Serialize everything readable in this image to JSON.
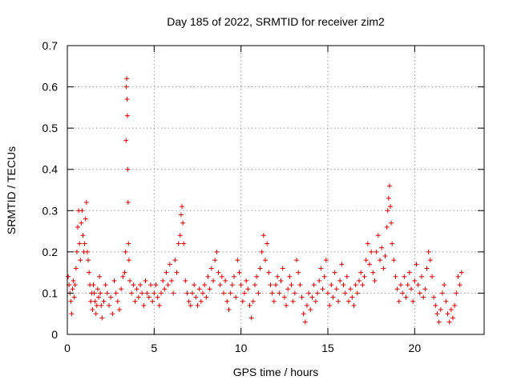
{
  "chart_data": {
    "type": "scatter",
    "title": "Day 185 of 2022, SRMTID for receiver zim2",
    "xlabel": "GPS time / hours",
    "ylabel": "SRMTID / TECUs",
    "xlim": [
      0,
      24
    ],
    "ylim": [
      0,
      0.7
    ],
    "xticks": [
      0,
      5,
      10,
      15,
      20
    ],
    "yticks": [
      0,
      0.1,
      0.2,
      0.3,
      0.4,
      0.5,
      0.6,
      0.7
    ],
    "xtick_labels": [
      "0",
      "5",
      "10",
      "15",
      "20"
    ],
    "ytick_labels": [
      "0",
      "0.1",
      "0.2",
      "0.3",
      "0.4",
      "0.5",
      "0.6",
      "0.7"
    ],
    "grid": true,
    "marker": "plus",
    "marker_color": "#e00000",
    "series": [
      {
        "name": "SRMTID",
        "points": [
          [
            0.05,
            0.14
          ],
          [
            0.1,
            0.12
          ],
          [
            0.15,
            0.1
          ],
          [
            0.2,
            0.08
          ],
          [
            0.25,
            0.05
          ],
          [
            0.3,
            0.11
          ],
          [
            0.35,
            0.13
          ],
          [
            0.4,
            0.09
          ],
          [
            0.45,
            0.12
          ],
          [
            0.5,
            0.16
          ],
          [
            0.55,
            0.2
          ],
          [
            0.6,
            0.26
          ],
          [
            0.65,
            0.3
          ],
          [
            0.7,
            0.22
          ],
          [
            0.75,
            0.18
          ],
          [
            0.8,
            0.27
          ],
          [
            0.85,
            0.3
          ],
          [
            0.9,
            0.24
          ],
          [
            0.95,
            0.2
          ],
          [
            1.0,
            0.22
          ],
          [
            1.05,
            0.28
          ],
          [
            1.1,
            0.32
          ],
          [
            1.15,
            0.2
          ],
          [
            1.2,
            0.18
          ],
          [
            1.25,
            0.15
          ],
          [
            1.3,
            0.12
          ],
          [
            1.35,
            0.08
          ],
          [
            1.4,
            0.1
          ],
          [
            1.45,
            0.06
          ],
          [
            1.5,
            0.12
          ],
          [
            1.55,
            0.1
          ],
          [
            1.6,
            0.08
          ],
          [
            1.65,
            0.05
          ],
          [
            1.7,
            0.07
          ],
          [
            1.75,
            0.11
          ],
          [
            1.8,
            0.09
          ],
          [
            1.85,
            0.14
          ],
          [
            1.9,
            0.1
          ],
          [
            1.95,
            0.07
          ],
          [
            2.0,
            0.04
          ],
          [
            2.1,
            0.08
          ],
          [
            2.2,
            0.12
          ],
          [
            2.3,
            0.1
          ],
          [
            2.4,
            0.07
          ],
          [
            2.5,
            0.09
          ],
          [
            2.6,
            0.05
          ],
          [
            2.7,
            0.13
          ],
          [
            2.8,
            0.1
          ],
          [
            2.9,
            0.08
          ],
          [
            3.0,
            0.06
          ],
          [
            3.1,
            0.11
          ],
          [
            3.2,
            0.14
          ],
          [
            3.3,
            0.15
          ],
          [
            3.35,
            0.2
          ],
          [
            3.38,
            0.47
          ],
          [
            3.4,
            0.6
          ],
          [
            3.42,
            0.62
          ],
          [
            3.44,
            0.57
          ],
          [
            3.46,
            0.53
          ],
          [
            3.48,
            0.4
          ],
          [
            3.5,
            0.32
          ],
          [
            3.52,
            0.22
          ],
          [
            3.55,
            0.18
          ],
          [
            3.6,
            0.13
          ],
          [
            3.7,
            0.1
          ],
          [
            3.8,
            0.12
          ],
          [
            3.9,
            0.08
          ],
          [
            4.0,
            0.11
          ],
          [
            4.1,
            0.09
          ],
          [
            4.2,
            0.12
          ],
          [
            4.3,
            0.1
          ],
          [
            4.4,
            0.07
          ],
          [
            4.5,
            0.13
          ],
          [
            4.6,
            0.1
          ],
          [
            4.7,
            0.09
          ],
          [
            4.8,
            0.12
          ],
          [
            4.9,
            0.08
          ],
          [
            5.0,
            0.1
          ],
          [
            5.1,
            0.12
          ],
          [
            5.2,
            0.09
          ],
          [
            5.3,
            0.07
          ],
          [
            5.4,
            0.1
          ],
          [
            5.5,
            0.13
          ],
          [
            5.6,
            0.11
          ],
          [
            5.7,
            0.15
          ],
          [
            5.8,
            0.12
          ],
          [
            5.9,
            0.17
          ],
          [
            6.0,
            0.13
          ],
          [
            6.1,
            0.1
          ],
          [
            6.2,
            0.18
          ],
          [
            6.3,
            0.15
          ],
          [
            6.4,
            0.22
          ],
          [
            6.5,
            0.24
          ],
          [
            6.55,
            0.29
          ],
          [
            6.6,
            0.31
          ],
          [
            6.65,
            0.27
          ],
          [
            6.7,
            0.22
          ],
          [
            6.8,
            0.13
          ],
          [
            6.9,
            0.1
          ],
          [
            7.0,
            0.08
          ],
          [
            7.1,
            0.07
          ],
          [
            7.2,
            0.1
          ],
          [
            7.3,
            0.12
          ],
          [
            7.4,
            0.09
          ],
          [
            7.5,
            0.07
          ],
          [
            7.6,
            0.11
          ],
          [
            7.7,
            0.08
          ],
          [
            7.8,
            0.1
          ],
          [
            7.9,
            0.12
          ],
          [
            8.0,
            0.09
          ],
          [
            8.1,
            0.14
          ],
          [
            8.2,
            0.11
          ],
          [
            8.3,
            0.16
          ],
          [
            8.4,
            0.13
          ],
          [
            8.5,
            0.18
          ],
          [
            8.6,
            0.2
          ],
          [
            8.7,
            0.15
          ],
          [
            8.8,
            0.12
          ],
          [
            8.9,
            0.14
          ],
          [
            9.0,
            0.1
          ],
          [
            9.1,
            0.13
          ],
          [
            9.2,
            0.08
          ],
          [
            9.3,
            0.06
          ],
          [
            9.4,
            0.1
          ],
          [
            9.5,
            0.12
          ],
          [
            9.6,
            0.14
          ],
          [
            9.7,
            0.09
          ],
          [
            9.8,
            0.18
          ],
          [
            9.9,
            0.15
          ],
          [
            10.0,
            0.12
          ],
          [
            10.1,
            0.08
          ],
          [
            10.2,
            0.1
          ],
          [
            10.3,
            0.13
          ],
          [
            10.4,
            0.11
          ],
          [
            10.5,
            0.07
          ],
          [
            10.6,
            0.04
          ],
          [
            10.7,
            0.08
          ],
          [
            10.8,
            0.12
          ],
          [
            10.9,
            0.14
          ],
          [
            11.0,
            0.1
          ],
          [
            11.1,
            0.16
          ],
          [
            11.2,
            0.2
          ],
          [
            11.3,
            0.24
          ],
          [
            11.4,
            0.18
          ],
          [
            11.5,
            0.22
          ],
          [
            11.6,
            0.15
          ],
          [
            11.7,
            0.12
          ],
          [
            11.8,
            0.1
          ],
          [
            11.9,
            0.08
          ],
          [
            12.0,
            0.12
          ],
          [
            12.1,
            0.14
          ],
          [
            12.2,
            0.1
          ],
          [
            12.3,
            0.13
          ],
          [
            12.4,
            0.16
          ],
          [
            12.5,
            0.09
          ],
          [
            12.6,
            0.07
          ],
          [
            12.7,
            0.11
          ],
          [
            12.8,
            0.14
          ],
          [
            12.9,
            0.12
          ],
          [
            13.0,
            0.08
          ],
          [
            13.1,
            0.1
          ],
          [
            13.2,
            0.18
          ],
          [
            13.3,
            0.15
          ],
          [
            13.4,
            0.12
          ],
          [
            13.5,
            0.09
          ],
          [
            13.6,
            0.05
          ],
          [
            13.7,
            0.03
          ],
          [
            13.8,
            0.07
          ],
          [
            13.9,
            0.1
          ],
          [
            14.0,
            0.06
          ],
          [
            14.1,
            0.09
          ],
          [
            14.2,
            0.12
          ],
          [
            14.3,
            0.08
          ],
          [
            14.4,
            0.1
          ],
          [
            14.5,
            0.13
          ],
          [
            14.6,
            0.16
          ],
          [
            14.7,
            0.11
          ],
          [
            14.8,
            0.14
          ],
          [
            14.9,
            0.18
          ],
          [
            15.0,
            0.1
          ],
          [
            15.1,
            0.07
          ],
          [
            15.2,
            0.12
          ],
          [
            15.3,
            0.09
          ],
          [
            15.4,
            0.15
          ],
          [
            15.5,
            0.11
          ],
          [
            15.6,
            0.08
          ],
          [
            15.7,
            0.13
          ],
          [
            15.8,
            0.17
          ],
          [
            15.9,
            0.12
          ],
          [
            16.0,
            0.1
          ],
          [
            16.1,
            0.14
          ],
          [
            16.2,
            0.08
          ],
          [
            16.3,
            0.11
          ],
          [
            16.4,
            0.09
          ],
          [
            16.5,
            0.07
          ],
          [
            16.6,
            0.12
          ],
          [
            16.7,
            0.1
          ],
          [
            16.8,
            0.13
          ],
          [
            16.9,
            0.15
          ],
          [
            17.0,
            0.12
          ],
          [
            17.1,
            0.14
          ],
          [
            17.2,
            0.18
          ],
          [
            17.3,
            0.22
          ],
          [
            17.4,
            0.17
          ],
          [
            17.5,
            0.2
          ],
          [
            17.6,
            0.15
          ],
          [
            17.7,
            0.13
          ],
          [
            17.8,
            0.2
          ],
          [
            17.9,
            0.24
          ],
          [
            18.0,
            0.18
          ],
          [
            18.1,
            0.21
          ],
          [
            18.2,
            0.16
          ],
          [
            18.3,
            0.19
          ],
          [
            18.4,
            0.26
          ],
          [
            18.45,
            0.3
          ],
          [
            18.5,
            0.33
          ],
          [
            18.55,
            0.36
          ],
          [
            18.6,
            0.31
          ],
          [
            18.65,
            0.27
          ],
          [
            18.7,
            0.22
          ],
          [
            18.8,
            0.18
          ],
          [
            18.9,
            0.14
          ],
          [
            19.0,
            0.11
          ],
          [
            19.1,
            0.08
          ],
          [
            19.2,
            0.12
          ],
          [
            19.3,
            0.1
          ],
          [
            19.4,
            0.14
          ],
          [
            19.5,
            0.09
          ],
          [
            19.6,
            0.12
          ],
          [
            19.7,
            0.15
          ],
          [
            19.8,
            0.11
          ],
          [
            19.9,
            0.08
          ],
          [
            20.0,
            0.13
          ],
          [
            20.1,
            0.17
          ],
          [
            20.2,
            0.12
          ],
          [
            20.3,
            0.1
          ],
          [
            20.4,
            0.14
          ],
          [
            20.5,
            0.09
          ],
          [
            20.6,
            0.11
          ],
          [
            20.7,
            0.16
          ],
          [
            20.8,
            0.2
          ],
          [
            20.9,
            0.18
          ],
          [
            21.0,
            0.14
          ],
          [
            21.1,
            0.09
          ],
          [
            21.2,
            0.07
          ],
          [
            21.3,
            0.05
          ],
          [
            21.4,
            0.03
          ],
          [
            21.5,
            0.06
          ],
          [
            21.6,
            0.1
          ],
          [
            21.7,
            0.12
          ],
          [
            21.8,
            0.08
          ],
          [
            21.9,
            0.05
          ],
          [
            22.0,
            0.03
          ],
          [
            22.1,
            0.06
          ],
          [
            22.2,
            0.04
          ],
          [
            22.3,
            0.07
          ],
          [
            22.4,
            0.1
          ],
          [
            22.5,
            0.14
          ],
          [
            22.6,
            0.12
          ],
          [
            22.7,
            0.15
          ]
        ]
      }
    ]
  }
}
